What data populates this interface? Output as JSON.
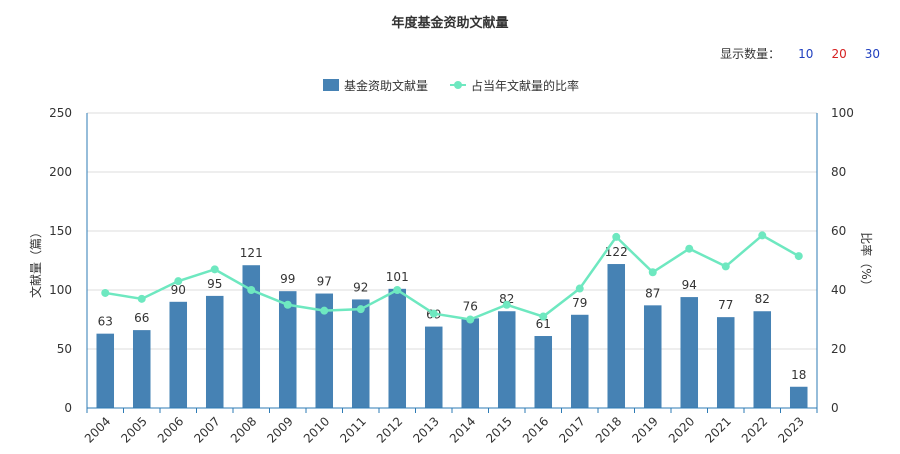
{
  "title": "年度基金资助文献量",
  "display_count": {
    "label": "显示数量：",
    "options": [
      {
        "value": "10",
        "color": "#1f3fbf"
      },
      {
        "value": "20",
        "color": "#d62020"
      },
      {
        "value": "30",
        "color": "#1f3fbf"
      }
    ]
  },
  "colors": {
    "bar": "#4682b4",
    "line": "#6ee8c0",
    "axis": "#2e7bb5",
    "grid": "#dddddd"
  },
  "chart_data": {
    "type": "bar",
    "title": "年度基金资助文献量",
    "categories": [
      "2004",
      "2005",
      "2006",
      "2007",
      "2008",
      "2009",
      "2010",
      "2011",
      "2012",
      "2013",
      "2014",
      "2015",
      "2016",
      "2017",
      "2018",
      "2019",
      "2020",
      "2021",
      "2022",
      "2023"
    ],
    "series": [
      {
        "name": "基金资助文献量",
        "type": "bar",
        "axis": "left",
        "values": [
          63,
          66,
          90,
          95,
          121,
          99,
          97,
          92,
          101,
          69,
          76,
          82,
          61,
          79,
          122,
          87,
          94,
          77,
          82,
          18
        ]
      },
      {
        "name": "占当年文献量的比率",
        "type": "line",
        "axis": "right",
        "values": [
          39,
          37,
          43,
          47,
          40,
          35,
          33,
          33.5,
          40,
          32,
          30,
          35,
          31,
          40.5,
          58,
          46,
          54,
          48,
          58.5,
          51.5
        ]
      }
    ],
    "ylabel": "文献量（篇）",
    "y2label": "比率（%）",
    "ylim": [
      0,
      250
    ],
    "y2lim": [
      0,
      100
    ],
    "yticks": [
      "0",
      "50",
      "100",
      "150",
      "200",
      "250"
    ],
    "y2ticks": [
      "0",
      "20",
      "40",
      "60",
      "80",
      "100"
    ],
    "legend": "top-center",
    "grid": true
  }
}
